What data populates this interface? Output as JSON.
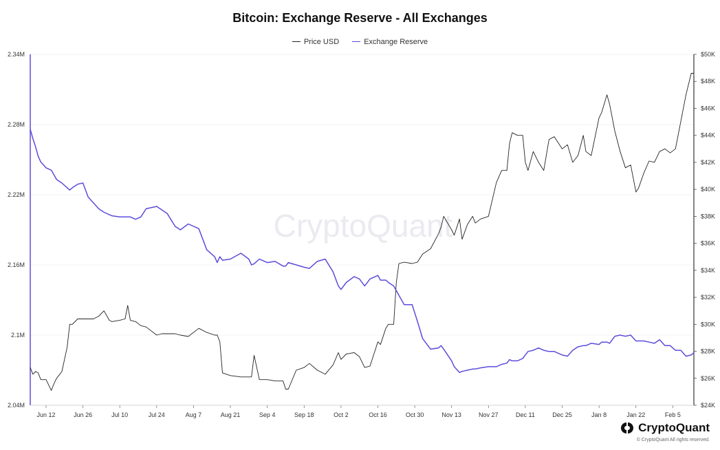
{
  "chart_data": {
    "type": "line",
    "title": "Bitcoin: Exchange Reserve - All Exchanges",
    "legend": {
      "placement": "top-center",
      "entries": [
        "Price USD",
        "Exchange Reserve"
      ]
    },
    "grid": true,
    "x_ticks": [
      "Jun 12",
      "Jun 26",
      "Jul 10",
      "Jul 24",
      "Aug 7",
      "Aug 21",
      "Sep 4",
      "Sep 18",
      "Oct 2",
      "Oct 16",
      "Oct 30",
      "Nov 13",
      "Nov 27",
      "Dec 11",
      "Dec 25",
      "Jan 8",
      "Jan 22",
      "Feb 5"
    ],
    "x_range": [
      "2023-06-06",
      "2024-02-13"
    ],
    "y_left": {
      "label": "",
      "ylim": [
        2.04,
        2.34
      ],
      "ticks": [
        "2.04M",
        "2.1M",
        "2.16M",
        "2.22M",
        "2.28M",
        "2.34M"
      ],
      "tick_values": [
        2.04,
        2.1,
        2.16,
        2.22,
        2.28,
        2.34
      ]
    },
    "y_right": {
      "label": "",
      "ylim": [
        24000,
        50000
      ],
      "ticks": [
        "$24K",
        "$26K",
        "$28K",
        "$30K",
        "$32K",
        "$34K",
        "$36K",
        "$38K",
        "$40K",
        "$42K",
        "$44K",
        "$46K",
        "$48K",
        "$50K"
      ],
      "tick_values": [
        24000,
        26000,
        28000,
        30000,
        32000,
        34000,
        36000,
        38000,
        40000,
        42000,
        44000,
        46000,
        48000,
        50000
      ]
    },
    "series": [
      {
        "name": "Price USD",
        "axis": "right",
        "color": "#222222",
        "x": [
          "2023-06-06",
          "2023-06-07",
          "2023-06-08",
          "2023-06-09",
          "2023-06-10",
          "2023-06-12",
          "2023-06-14",
          "2023-06-15",
          "2023-06-16",
          "2023-06-18",
          "2023-06-20",
          "2023-06-21",
          "2023-06-22",
          "2023-06-24",
          "2023-06-26",
          "2023-06-28",
          "2023-06-30",
          "2023-07-02",
          "2023-07-04",
          "2023-07-06",
          "2023-07-07",
          "2023-07-10",
          "2023-07-12",
          "2023-07-13",
          "2023-07-14",
          "2023-07-16",
          "2023-07-18",
          "2023-07-20",
          "2023-07-24",
          "2023-07-26",
          "2023-07-28",
          "2023-07-31",
          "2023-08-02",
          "2023-08-05",
          "2023-08-09",
          "2023-08-12",
          "2023-08-15",
          "2023-08-16",
          "2023-08-17",
          "2023-08-18",
          "2023-08-21",
          "2023-08-25",
          "2023-08-28",
          "2023-08-29",
          "2023-08-30",
          "2023-09-01",
          "2023-09-04",
          "2023-09-07",
          "2023-09-10",
          "2023-09-11",
          "2023-09-12",
          "2023-09-15",
          "2023-09-18",
          "2023-09-20",
          "2023-09-23",
          "2023-09-26",
          "2023-09-29",
          "2023-10-01",
          "2023-10-02",
          "2023-10-04",
          "2023-10-07",
          "2023-10-09",
          "2023-10-11",
          "2023-10-13",
          "2023-10-16",
          "2023-10-17",
          "2023-10-19",
          "2023-10-20",
          "2023-10-22",
          "2023-10-23",
          "2023-10-24",
          "2023-10-26",
          "2023-10-29",
          "2023-10-31",
          "2023-11-02",
          "2023-11-05",
          "2023-11-08",
          "2023-11-09",
          "2023-11-10",
          "2023-11-13",
          "2023-11-14",
          "2023-11-16",
          "2023-11-17",
          "2023-11-19",
          "2023-11-21",
          "2023-11-22",
          "2023-11-24",
          "2023-11-27",
          "2023-11-30",
          "2023-12-02",
          "2023-12-04",
          "2023-12-05",
          "2023-12-06",
          "2023-12-08",
          "2023-12-10",
          "2023-12-11",
          "2023-12-12",
          "2023-12-14",
          "2023-12-16",
          "2023-12-18",
          "2023-12-20",
          "2023-12-22",
          "2023-12-25",
          "2023-12-27",
          "2023-12-29",
          "2023-12-31",
          "2024-01-02",
          "2024-01-03",
          "2024-01-05",
          "2024-01-08",
          "2024-01-09",
          "2024-01-11",
          "2024-01-12",
          "2024-01-14",
          "2024-01-16",
          "2024-01-18",
          "2024-01-20",
          "2024-01-22",
          "2024-01-23",
          "2024-01-25",
          "2024-01-27",
          "2024-01-29",
          "2024-01-31",
          "2024-02-02",
          "2024-02-04",
          "2024-02-06",
          "2024-02-08",
          "2024-02-10",
          "2024-02-12",
          "2024-02-13"
        ],
        "values": [
          26800,
          26300,
          26500,
          26400,
          25900,
          25900,
          25100,
          25600,
          26000,
          26500,
          28300,
          30000,
          30000,
          30400,
          30400,
          30400,
          30400,
          30600,
          31000,
          30300,
          30200,
          30300,
          30400,
          31400,
          30300,
          30200,
          29900,
          29800,
          29200,
          29300,
          29300,
          29300,
          29200,
          29100,
          29700,
          29400,
          29200,
          29200,
          28700,
          26400,
          26200,
          26100,
          26100,
          26100,
          27700,
          25900,
          25900,
          25800,
          25800,
          25200,
          25200,
          26600,
          26800,
          27100,
          26600,
          26300,
          27000,
          27900,
          27400,
          27800,
          27900,
          27600,
          26800,
          26900,
          28700,
          28500,
          29700,
          30000,
          30000,
          33100,
          34500,
          34600,
          34500,
          34600,
          35200,
          35600,
          36700,
          37200,
          38000,
          37000,
          36600,
          37800,
          36300,
          37400,
          38000,
          37500,
          37800,
          38000,
          40500,
          41400,
          41400,
          43400,
          44200,
          44000,
          44000,
          42000,
          41400,
          42800,
          42000,
          41400,
          43700,
          43900,
          43000,
          43300,
          42000,
          42500,
          44000,
          42800,
          42500,
          45300,
          45700,
          47000,
          46300,
          44300,
          42800,
          41600,
          41800,
          39800,
          40100,
          41200,
          42100,
          42000,
          42800,
          43000,
          42700,
          43000,
          45000,
          47000,
          48600,
          48600
        ]
      },
      {
        "name": "Exchange Reserve",
        "axis": "left",
        "color": "#5b4bdb",
        "x": [
          "2023-06-06",
          "2023-06-07",
          "2023-06-08",
          "2023-06-09",
          "2023-06-10",
          "2023-06-12",
          "2023-06-14",
          "2023-06-15",
          "2023-06-16",
          "2023-06-18",
          "2023-06-20",
          "2023-06-21",
          "2023-06-22",
          "2023-06-24",
          "2023-06-26",
          "2023-06-28",
          "2023-06-30",
          "2023-07-02",
          "2023-07-04",
          "2023-07-06",
          "2023-07-07",
          "2023-07-10",
          "2023-07-12",
          "2023-07-13",
          "2023-07-14",
          "2023-07-16",
          "2023-07-18",
          "2023-07-20",
          "2023-07-24",
          "2023-07-26",
          "2023-07-28",
          "2023-07-31",
          "2023-08-02",
          "2023-08-05",
          "2023-08-09",
          "2023-08-12",
          "2023-08-15",
          "2023-08-16",
          "2023-08-17",
          "2023-08-18",
          "2023-08-21",
          "2023-08-25",
          "2023-08-28",
          "2023-08-29",
          "2023-08-30",
          "2023-09-01",
          "2023-09-04",
          "2023-09-07",
          "2023-09-10",
          "2023-09-11",
          "2023-09-12",
          "2023-09-15",
          "2023-09-18",
          "2023-09-20",
          "2023-09-23",
          "2023-09-26",
          "2023-09-29",
          "2023-10-01",
          "2023-10-02",
          "2023-10-04",
          "2023-10-07",
          "2023-10-09",
          "2023-10-11",
          "2023-10-13",
          "2023-10-16",
          "2023-10-17",
          "2023-10-19",
          "2023-10-20",
          "2023-10-22",
          "2023-10-23",
          "2023-10-24",
          "2023-10-26",
          "2023-10-29",
          "2023-10-31",
          "2023-11-02",
          "2023-11-05",
          "2023-11-08",
          "2023-11-09",
          "2023-11-10",
          "2023-11-13",
          "2023-11-14",
          "2023-11-16",
          "2023-11-17",
          "2023-11-19",
          "2023-11-21",
          "2023-11-22",
          "2023-11-24",
          "2023-11-27",
          "2023-11-30",
          "2023-12-02",
          "2023-12-04",
          "2023-12-05",
          "2023-12-06",
          "2023-12-08",
          "2023-12-10",
          "2023-12-11",
          "2023-12-12",
          "2023-12-14",
          "2023-12-16",
          "2023-12-18",
          "2023-12-20",
          "2023-12-22",
          "2023-12-25",
          "2023-12-27",
          "2023-12-29",
          "2023-12-31",
          "2024-01-02",
          "2024-01-03",
          "2024-01-05",
          "2024-01-08",
          "2024-01-09",
          "2024-01-11",
          "2024-01-12",
          "2024-01-14",
          "2024-01-16",
          "2024-01-18",
          "2024-01-20",
          "2024-01-22",
          "2024-01-23",
          "2024-01-25",
          "2024-01-27",
          "2024-01-29",
          "2024-01-31",
          "2024-02-02",
          "2024-02-04",
          "2024-02-06",
          "2024-02-08",
          "2024-02-10",
          "2024-02-12",
          "2024-02-13"
        ],
        "values": [
          2.276,
          2.268,
          2.261,
          2.253,
          2.248,
          2.243,
          2.241,
          2.237,
          2.233,
          2.23,
          2.226,
          2.224,
          2.226,
          2.229,
          2.23,
          2.218,
          2.213,
          2.208,
          2.205,
          2.203,
          2.202,
          2.201,
          2.201,
          2.201,
          2.201,
          2.199,
          2.201,
          2.208,
          2.21,
          2.207,
          2.204,
          2.193,
          2.19,
          2.195,
          2.191,
          2.173,
          2.167,
          2.162,
          2.167,
          2.164,
          2.165,
          2.17,
          2.165,
          2.16,
          2.161,
          2.165,
          2.162,
          2.163,
          2.159,
          2.159,
          2.162,
          2.16,
          2.158,
          2.157,
          2.163,
          2.165,
          2.154,
          2.142,
          2.139,
          2.145,
          2.15,
          2.148,
          2.142,
          2.148,
          2.151,
          2.147,
          2.147,
          2.145,
          2.142,
          2.138,
          2.134,
          2.126,
          2.126,
          2.112,
          2.097,
          2.088,
          2.089,
          2.091,
          2.088,
          2.078,
          2.073,
          2.068,
          2.069,
          2.07,
          2.071,
          2.071,
          2.072,
          2.073,
          2.073,
          2.075,
          2.076,
          2.079,
          2.078,
          2.078,
          2.08,
          2.083,
          2.086,
          2.087,
          2.089,
          2.087,
          2.086,
          2.086,
          2.083,
          2.082,
          2.087,
          2.09,
          2.091,
          2.091,
          2.093,
          2.092,
          2.094,
          2.094,
          2.093,
          2.099,
          2.1,
          2.099,
          2.1,
          2.095,
          2.095,
          2.095,
          2.094,
          2.093,
          2.096,
          2.091,
          2.091,
          2.087,
          2.087,
          2.082,
          2.083,
          2.085
        ]
      }
    ]
  },
  "watermark": "CryptoQuant",
  "brand": {
    "name": "CryptoQuant",
    "copyright": "© CryptoQuant All rights reserved.",
    "icon": "cryptoquant-logo-icon"
  },
  "colors": {
    "price": "#222222",
    "reserve": "#5b4bdb",
    "grid": "#ececec",
    "axis": "#333333"
  }
}
